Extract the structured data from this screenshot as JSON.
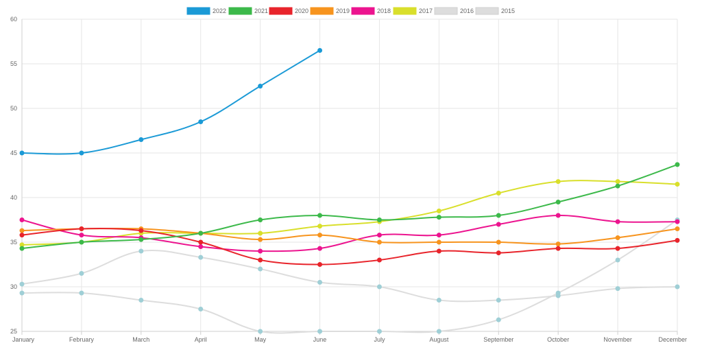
{
  "chart_data": {
    "type": "line",
    "title": "",
    "xlabel": "",
    "ylabel": "",
    "ylim": [
      25,
      60
    ],
    "yticks": [
      "25",
      "30",
      "35",
      "40",
      "45",
      "50",
      "55",
      "60"
    ],
    "categories": [
      "January",
      "February",
      "March",
      "April",
      "May",
      "June",
      "July",
      "August",
      "September",
      "October",
      "November",
      "December"
    ],
    "grid": true,
    "legend_position": "top",
    "series": [
      {
        "name": "2022",
        "color": "#1b9ad6",
        "values": [
          45,
          45,
          46.5,
          48.5,
          52.5,
          56.5,
          null,
          null,
          null,
          null,
          null,
          null
        ]
      },
      {
        "name": "2021",
        "color": "#3cb94a",
        "values": [
          34.3,
          35,
          35.3,
          36,
          37.5,
          38,
          37.5,
          37.8,
          38,
          39.5,
          41.3,
          43.7
        ]
      },
      {
        "name": "2020",
        "color": "#e8242b",
        "values": [
          35.8,
          36.5,
          36.3,
          35,
          33,
          32.5,
          33,
          34,
          33.8,
          34.3,
          34.3,
          35.2
        ]
      },
      {
        "name": "2019",
        "color": "#f7941e",
        "values": [
          36.3,
          36.5,
          36.5,
          36,
          35.3,
          35.8,
          35,
          35,
          35,
          34.8,
          35.5,
          36.5
        ]
      },
      {
        "name": "2018",
        "color": "#ec148f",
        "values": [
          37.5,
          35.8,
          35.5,
          34.5,
          34,
          34.3,
          35.8,
          35.8,
          37,
          38,
          37.3,
          37.3
        ]
      },
      {
        "name": "2017",
        "color": "#d9df2b",
        "values": [
          34.7,
          35,
          36,
          36,
          36,
          36.8,
          37.3,
          38.5,
          40.5,
          41.8,
          41.8,
          41.5
        ]
      },
      {
        "name": "2016",
        "color": "#dddddd",
        "values": [
          30.3,
          31.5,
          34,
          33.3,
          32,
          30.5,
          30,
          28.5,
          28.5,
          29,
          29.8,
          30
        ]
      },
      {
        "name": "2015",
        "color": "#dddddd",
        "values": [
          29.3,
          29.3,
          28.5,
          27.5,
          25,
          25,
          25,
          25,
          26.3,
          29.3,
          33,
          37.5
        ]
      }
    ]
  }
}
